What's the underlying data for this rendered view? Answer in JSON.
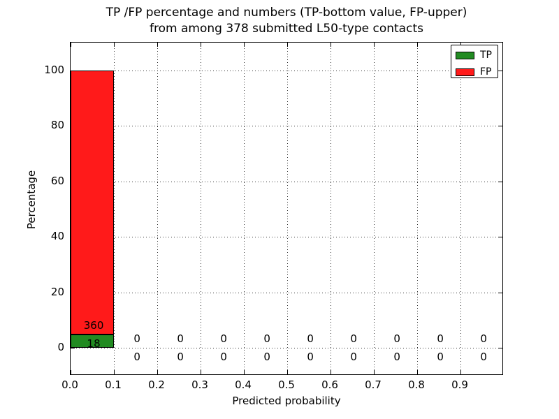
{
  "chart_data": {
    "type": "bar",
    "stacked": true,
    "title": "TP /FP percentage and numbers (TP-bottom value, FP-upper)",
    "subtitle": "from among 378 submitted L50-type contacts",
    "xlabel": "Predicted probability",
    "ylabel": "Percentage",
    "total": 378,
    "xlim": [
      0.0,
      1.0
    ],
    "ylim": [
      -10,
      110
    ],
    "bin_width": 0.1,
    "bin_starts": [
      0.0,
      0.1,
      0.2,
      0.3,
      0.4,
      0.5,
      0.6,
      0.7,
      0.8,
      0.9
    ],
    "xticks": [
      0.0,
      0.1,
      0.2,
      0.3,
      0.4,
      0.5,
      0.6,
      0.7,
      0.8,
      0.9
    ],
    "xtick_labels": [
      "0.0",
      "0.1",
      "0.2",
      "0.3",
      "0.4",
      "0.5",
      "0.6",
      "0.7",
      "0.8",
      "0.9"
    ],
    "yticks": [
      0,
      20,
      40,
      60,
      80,
      100
    ],
    "ytick_labels": [
      "0",
      "20",
      "40",
      "60",
      "80",
      "100"
    ],
    "grid": "dotted",
    "series": [
      {
        "name": "TP",
        "color": "#228b22",
        "counts": [
          18,
          0,
          0,
          0,
          0,
          0,
          0,
          0,
          0,
          0
        ],
        "percent": [
          4.76,
          0,
          0,
          0,
          0,
          0,
          0,
          0,
          0,
          0
        ]
      },
      {
        "name": "FP",
        "color": "#ff1a1a",
        "counts": [
          360,
          0,
          0,
          0,
          0,
          0,
          0,
          0,
          0,
          0
        ],
        "percent": [
          95.24,
          0,
          0,
          0,
          0,
          0,
          0,
          0,
          0,
          0
        ]
      }
    ],
    "legend": {
      "position": "upper right",
      "entries": [
        {
          "label": "TP",
          "color": "#228b22"
        },
        {
          "label": "FP",
          "color": "#ff1a1a"
        }
      ]
    }
  }
}
